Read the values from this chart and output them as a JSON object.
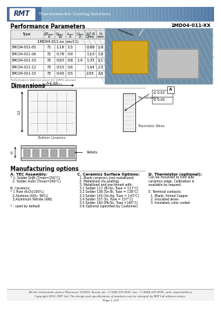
{
  "title_text": "1MD04-011-XX",
  "header_company": "RMT",
  "header_subtitle": "Thermoelectric Cooling Solutions",
  "section1_title": "Performance Parameters",
  "section2_title": "Dimensions",
  "section3_title": "Manufacturing options",
  "table_subheader": "1MD04-011-xx (rev11)",
  "table_rows": [
    [
      "1MC04-011-05",
      "71",
      "1.19",
      "1.5",
      "",
      "0.69",
      "1.6"
    ],
    [
      "1MC04-011-06",
      "72",
      "0.78",
      "0.9",
      "",
      "1.10",
      "1.9"
    ],
    [
      "1MC04-011-10",
      "72",
      "0.63",
      "0.8",
      "1.4",
      "1.37",
      "2.1"
    ],
    [
      "1MC04-011-12",
      "73",
      "0.53",
      "0.6",
      "",
      "1.64",
      "2.3"
    ],
    [
      "1MC04-011-15",
      "73",
      "0.43",
      "0.5",
      "",
      "2.05",
      "2.6"
    ]
  ],
  "table_note": "Performance data are given for 100% vacuum",
  "mfg_col1_title": "A. TEC Assembly:",
  "mfg_col1_lines": [
    "* 1. Solder SnBi (Tmax=250°C)",
    "  2. Solder AuSn (Tmax=260°C)",
    "",
    "B. Ceramics:",
    "* 1 Pure Al₂O₃(100%)",
    "  2.Alumina (AlO₂- 96%)",
    "  3.Aluminum Nitride (AlN)",
    "",
    "* - used by default"
  ],
  "mfg_col2_title": "C. Ceramics Surface Options:",
  "mfg_col2_lines": [
    "  1. Blank ceramics (not metallized)",
    "  2. Metallized (Au plating)",
    "  3. Metallized and pre-tinned with:",
    "  3.1 Solder 117 (Bi-Sn, Tuse = 117°C)",
    "  3.2 Solder 138 (Sn-Bi, Tuse = 138°C)",
    "  3.3 Solder 143 (Sn-Ag, Tuse = 143°C)",
    "  3.4 Solder 157 (In, Tuse = 157°C)",
    "  3.5 Solder 160 (Pb-Sn, Tuse =160°C)",
    "  3.6 Optional (specified by Customer)"
  ],
  "mfg_col3_title": "D. Thermistor (optional):",
  "mfg_col3_lines": [
    "Can be mounted to cold side",
    "ceramics edge. Calibration is",
    "available by request.",
    "",
    "E. Terminal contacts:",
    "  1. Blank, tinned Copper",
    "  2. Insulated wires",
    "  3. Insulated, color coded"
  ],
  "footer1": "All the information above: Maximum 119000, Russia, ph: +7-848-370-0555, fax: +7-8484-370-0555, web: www.rmtltd.ru",
  "footer2": "Copyright 2012, RMT Ltd. The design and specifications of products can be changed by RMT Ltd without notice.",
  "footer3": "Page 1 of 8"
}
